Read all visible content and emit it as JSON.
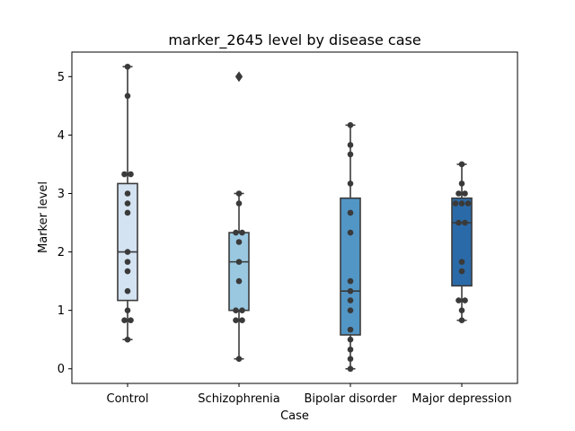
{
  "chart_data": {
    "type": "box",
    "title": "marker_2645 level by disease case",
    "xlabel": "Case",
    "ylabel": "Marker level",
    "ylim": [
      -0.25,
      5.42
    ],
    "yticks": [
      "0",
      "1",
      "2",
      "3",
      "4",
      "5"
    ],
    "grid": false,
    "legend": "none",
    "categories": [
      "Control",
      "Schizophrenia",
      "Bipolar disorder",
      "Major depression"
    ],
    "colors": [
      "#d4e3f2",
      "#9ac8e0",
      "#5296c6",
      "#2b6aa8"
    ],
    "boxes": [
      {
        "category": "Control",
        "whisker_low": 0.5,
        "q1": 1.17,
        "median": 2.0,
        "q3": 3.17,
        "whisker_high": 5.17,
        "outliers": []
      },
      {
        "category": "Schizophrenia",
        "whisker_low": 0.17,
        "q1": 1.0,
        "median": 1.83,
        "q3": 2.33,
        "whisker_high": 3.0,
        "outliers": [
          5.0
        ]
      },
      {
        "category": "Bipolar disorder",
        "whisker_low": 0.0,
        "q1": 0.58,
        "median": 1.33,
        "q3": 2.92,
        "whisker_high": 4.17,
        "outliers": []
      },
      {
        "category": "Major depression",
        "whisker_low": 0.83,
        "q1": 1.42,
        "median": 2.5,
        "q3": 2.92,
        "whisker_high": 3.5,
        "outliers": []
      }
    ],
    "points": [
      [
        0.5,
        0.83,
        0.83,
        1.0,
        1.33,
        1.67,
        1.83,
        2.0,
        2.67,
        2.83,
        3.0,
        3.33,
        3.33,
        4.67,
        5.17
      ],
      [
        0.17,
        0.83,
        0.83,
        1.0,
        1.0,
        1.5,
        1.83,
        2.17,
        2.33,
        2.33,
        2.83,
        3.0,
        5.0
      ],
      [
        0.0,
        0.17,
        0.33,
        0.5,
        0.67,
        1.0,
        1.17,
        1.33,
        1.5,
        2.33,
        2.67,
        3.17,
        3.67,
        3.83,
        4.17
      ],
      [
        0.83,
        1.0,
        1.17,
        1.17,
        1.67,
        1.83,
        2.5,
        2.5,
        2.83,
        2.83,
        2.83,
        3.0,
        3.0,
        3.17,
        3.5
      ]
    ]
  }
}
